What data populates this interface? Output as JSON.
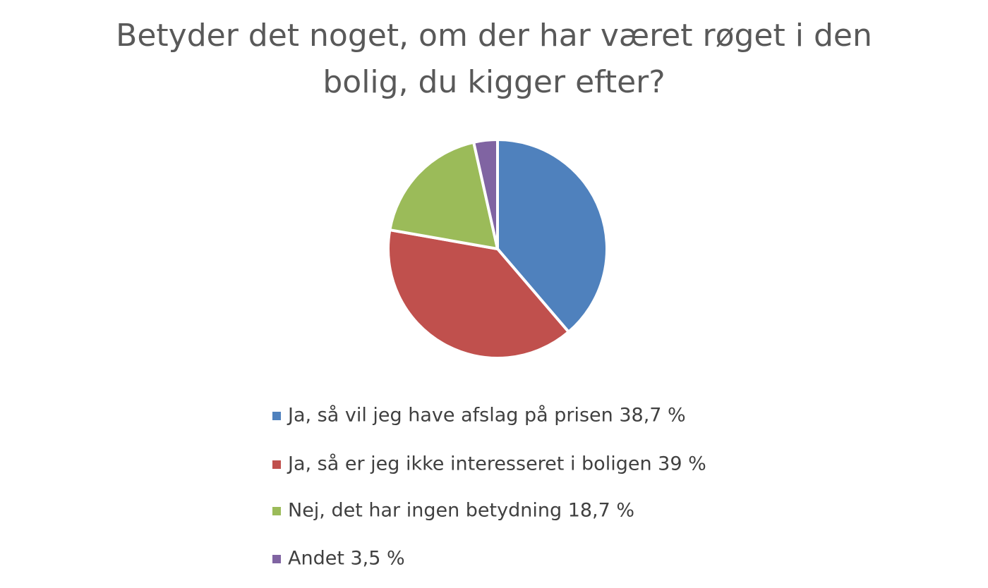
{
  "chart_data": {
    "type": "pie",
    "title": "Betyder det noget, om der har været røget i den bolig, du kigger efter?",
    "categories": [
      "Ja, så vil jeg have afslag på prisen 38,7 %",
      "Ja, så er jeg ikke interesseret i boligen 39 %",
      "Nej, det har ingen betydning 18,7 %",
      "Andet 3,5 %"
    ],
    "values": [
      38.7,
      39,
      18.7,
      3.5
    ],
    "colors": [
      "#4f81bd",
      "#c0504d",
      "#9bbb59",
      "#8064a2"
    ],
    "legend": "bottom"
  }
}
